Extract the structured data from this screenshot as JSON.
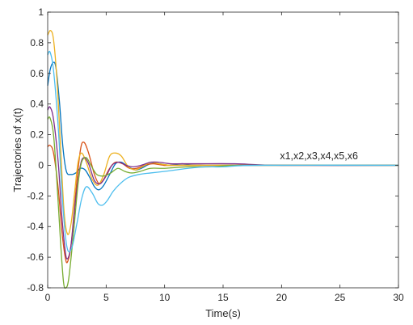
{
  "chart_data": {
    "type": "line",
    "xlabel": "Time(s)",
    "ylabel": "Trajectories of x(t)",
    "xlim": [
      0,
      30
    ],
    "ylim": [
      -0.8,
      1
    ],
    "xticks": [
      0,
      5,
      10,
      15,
      20,
      25,
      30
    ],
    "xtick_labels": [
      "0",
      "5",
      "10",
      "15",
      "20",
      "25",
      "30"
    ],
    "yticks": [
      -0.8,
      -0.6,
      -0.4,
      -0.2,
      0,
      0.2,
      0.4,
      0.6,
      0.8,
      1
    ],
    "ytick_labels": [
      "-0.8",
      "-0.6",
      "-0.4",
      "-0.2",
      "0",
      "0.2",
      "0.4",
      "0.6",
      "0.8",
      "1"
    ],
    "grid": false,
    "box": true,
    "annotation": {
      "text": "x1,x2,x3,x4,x5,x6",
      "x": 20,
      "y": 0.04
    },
    "series": [
      {
        "color": "#0072BD",
        "points": [
          [
            0,
            0.52
          ],
          [
            0.2,
            0.62
          ],
          [
            0.45,
            0.67
          ],
          [
            0.7,
            0.64
          ],
          [
            1.0,
            0.42
          ],
          [
            1.3,
            0.12
          ],
          [
            1.6,
            -0.04
          ],
          [
            2.0,
            -0.06
          ],
          [
            2.4,
            -0.05
          ],
          [
            2.8,
            -0.02
          ],
          [
            3.2,
            -0.03
          ],
          [
            3.6,
            -0.08
          ],
          [
            4.0,
            -0.14
          ],
          [
            4.4,
            -0.16
          ],
          [
            4.8,
            -0.13
          ],
          [
            5.3,
            -0.06
          ],
          [
            5.8,
            0.01
          ],
          [
            6.3,
            0.02
          ],
          [
            6.9,
            -0.01
          ],
          [
            7.5,
            -0.03
          ],
          [
            8.0,
            -0.02
          ],
          [
            8.8,
            0.01
          ],
          [
            9.5,
            0.01
          ],
          [
            10.5,
            0.0
          ],
          [
            11.5,
            0.01
          ],
          [
            13,
            0.0
          ],
          [
            20,
            0.0
          ],
          [
            30,
            0.0
          ]
        ]
      },
      {
        "color": "#D95319",
        "points": [
          [
            0,
            0.12
          ],
          [
            0.2,
            0.13
          ],
          [
            0.5,
            0.08
          ],
          [
            0.9,
            -0.15
          ],
          [
            1.2,
            -0.42
          ],
          [
            1.5,
            -0.6
          ],
          [
            1.7,
            -0.63
          ],
          [
            2.0,
            -0.52
          ],
          [
            2.4,
            -0.18
          ],
          [
            2.8,
            0.1
          ],
          [
            3.1,
            0.15
          ],
          [
            3.5,
            0.08
          ],
          [
            4.0,
            -0.06
          ],
          [
            4.4,
            -0.12
          ],
          [
            4.8,
            -0.09
          ],
          [
            5.3,
            -0.02
          ],
          [
            5.8,
            0.02
          ],
          [
            6.4,
            0.01
          ],
          [
            7.0,
            -0.02
          ],
          [
            7.6,
            -0.02
          ],
          [
            8.3,
            0.0
          ],
          [
            9.0,
            0.01
          ],
          [
            10,
            0.0
          ],
          [
            12,
            0.0
          ],
          [
            30,
            0.0
          ]
        ]
      },
      {
        "color": "#EDB120",
        "points": [
          [
            0,
            0.85
          ],
          [
            0.25,
            0.88
          ],
          [
            0.5,
            0.82
          ],
          [
            0.8,
            0.55
          ],
          [
            1.1,
            0.12
          ],
          [
            1.4,
            -0.3
          ],
          [
            1.7,
            -0.45
          ],
          [
            2.0,
            -0.38
          ],
          [
            2.3,
            -0.18
          ],
          [
            2.6,
            0.02
          ],
          [
            2.9,
            0.08
          ],
          [
            3.3,
            0.02
          ],
          [
            3.8,
            -0.09
          ],
          [
            4.3,
            -0.13
          ],
          [
            4.8,
            -0.06
          ],
          [
            5.3,
            0.06
          ],
          [
            5.8,
            0.08
          ],
          [
            6.3,
            0.06
          ],
          [
            6.9,
            -0.01
          ],
          [
            7.5,
            -0.03
          ],
          [
            8.1,
            -0.01
          ],
          [
            8.8,
            0.02
          ],
          [
            9.5,
            0.01
          ],
          [
            10.5,
            0.0
          ],
          [
            12,
            0.0
          ],
          [
            30,
            0.0
          ]
        ]
      },
      {
        "color": "#7E2F8E",
        "points": [
          [
            0,
            0.36
          ],
          [
            0.2,
            0.38
          ],
          [
            0.5,
            0.3
          ],
          [
            0.9,
            0.02
          ],
          [
            1.2,
            -0.32
          ],
          [
            1.5,
            -0.56
          ],
          [
            1.7,
            -0.61
          ],
          [
            2.0,
            -0.52
          ],
          [
            2.4,
            -0.22
          ],
          [
            2.8,
            0.0
          ],
          [
            3.1,
            0.05
          ],
          [
            3.5,
            0.01
          ],
          [
            4.0,
            -0.1
          ],
          [
            4.5,
            -0.12
          ],
          [
            5.0,
            -0.07
          ],
          [
            5.5,
            0.0
          ],
          [
            6.1,
            0.02
          ],
          [
            6.7,
            0.0
          ],
          [
            7.3,
            -0.01
          ],
          [
            8.0,
            0.0
          ],
          [
            8.8,
            0.02
          ],
          [
            9.5,
            0.02
          ],
          [
            10.5,
            0.01
          ],
          [
            11.5,
            0.01
          ],
          [
            13,
            0.01
          ],
          [
            16,
            0.01
          ],
          [
            20,
            0.0
          ],
          [
            30,
            0.0
          ]
        ]
      },
      {
        "color": "#77AC30",
        "points": [
          [
            0,
            0.3
          ],
          [
            0.2,
            0.31
          ],
          [
            0.5,
            0.2
          ],
          [
            0.8,
            -0.12
          ],
          [
            1.1,
            -0.5
          ],
          [
            1.35,
            -0.76
          ],
          [
            1.55,
            -0.8
          ],
          [
            1.8,
            -0.74
          ],
          [
            2.2,
            -0.45
          ],
          [
            2.6,
            -0.12
          ],
          [
            2.9,
            0.02
          ],
          [
            3.3,
            0.05
          ],
          [
            3.7,
            0.0
          ],
          [
            4.2,
            -0.06
          ],
          [
            4.8,
            -0.07
          ],
          [
            5.4,
            -0.05
          ],
          [
            6.0,
            -0.02
          ],
          [
            6.6,
            -0.04
          ],
          [
            7.2,
            -0.05
          ],
          [
            7.9,
            -0.04
          ],
          [
            8.8,
            -0.02
          ],
          [
            10,
            -0.02
          ],
          [
            12,
            -0.01
          ],
          [
            14,
            -0.01
          ],
          [
            17,
            0.0
          ],
          [
            30,
            0.0
          ]
        ]
      },
      {
        "color": "#4DBEEE",
        "points": [
          [
            0,
            0.72
          ],
          [
            0.2,
            0.74
          ],
          [
            0.5,
            0.62
          ],
          [
            0.9,
            0.25
          ],
          [
            1.2,
            -0.15
          ],
          [
            1.5,
            -0.45
          ],
          [
            1.75,
            -0.56
          ],
          [
            2.1,
            -0.53
          ],
          [
            2.5,
            -0.38
          ],
          [
            2.9,
            -0.22
          ],
          [
            3.3,
            -0.14
          ],
          [
            3.8,
            -0.18
          ],
          [
            4.3,
            -0.25
          ],
          [
            4.7,
            -0.26
          ],
          [
            5.1,
            -0.23
          ],
          [
            5.6,
            -0.17
          ],
          [
            6.2,
            -0.12
          ],
          [
            6.9,
            -0.08
          ],
          [
            7.8,
            -0.06
          ],
          [
            8.8,
            -0.05
          ],
          [
            10,
            -0.04
          ],
          [
            11,
            -0.03
          ],
          [
            12,
            -0.02
          ],
          [
            13.5,
            -0.01
          ],
          [
            15,
            -0.01
          ],
          [
            18,
            0.0
          ],
          [
            30,
            0.0
          ]
        ]
      }
    ]
  }
}
